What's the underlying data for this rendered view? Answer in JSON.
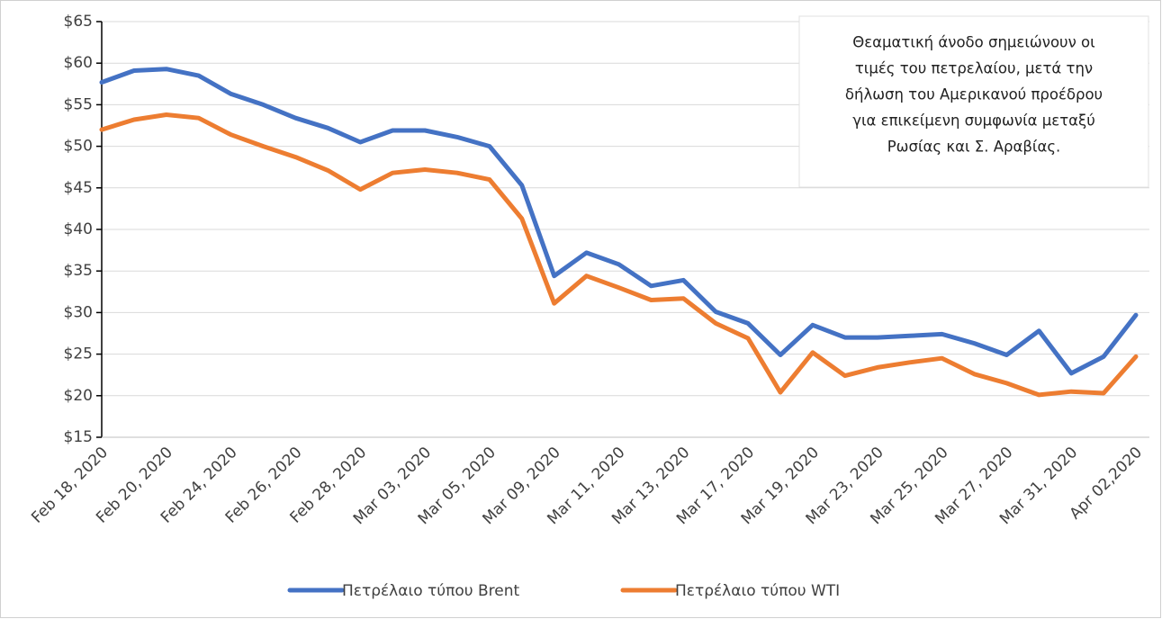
{
  "chart_data": {
    "type": "line",
    "categories": [
      "Feb 18, 2020",
      null,
      "Feb 20, 2020",
      null,
      "Feb 24, 2020",
      null,
      "Feb 26, 2020",
      null,
      "Feb 28, 2020",
      null,
      "Mar 03, 2020",
      null,
      "Mar 05, 2020",
      null,
      "Mar 09, 2020",
      null,
      "Mar 11, 2020",
      null,
      "Mar 13, 2020",
      null,
      "Mar 17, 2020",
      null,
      "Mar 19, 2020",
      null,
      "Mar 23, 2020",
      null,
      "Mar 25, 2020",
      null,
      "Mar 27, 2020",
      null,
      "Mar 31, 2020",
      null,
      "Apr 02,2020"
    ],
    "series": [
      {
        "name": "Πετρέλαιο τύπου Brent",
        "color": "#4472c4",
        "values": [
          57.7,
          59.1,
          59.3,
          58.5,
          56.3,
          55.0,
          53.4,
          52.2,
          50.5,
          51.9,
          51.9,
          51.1,
          50.0,
          45.3,
          34.4,
          37.2,
          35.8,
          33.2,
          33.9,
          30.1,
          28.7,
          24.9,
          28.5,
          27.0,
          27.0,
          27.2,
          27.4,
          26.3,
          24.9,
          27.8,
          22.7,
          24.7,
          29.7
        ]
      },
      {
        "name": "Πετρέλαιο τύπου WTI",
        "color": "#ed7d31",
        "values": [
          52.0,
          53.2,
          53.8,
          53.4,
          51.4,
          50.0,
          48.7,
          47.1,
          44.8,
          46.8,
          47.2,
          46.8,
          46.0,
          41.3,
          31.1,
          34.4,
          33.0,
          31.5,
          31.7,
          28.7,
          26.9,
          20.4,
          25.2,
          22.4,
          23.4,
          24.0,
          24.5,
          22.6,
          21.5,
          20.1,
          20.5,
          20.3,
          24.7
        ]
      }
    ],
    "ylim": [
      15,
      65
    ],
    "yticks": [
      {
        "value": 15,
        "label": "$15"
      },
      {
        "value": 20,
        "label": "$20"
      },
      {
        "value": 25,
        "label": "$25"
      },
      {
        "value": 30,
        "label": "$30"
      },
      {
        "value": 35,
        "label": "$35"
      },
      {
        "value": 40,
        "label": "$40"
      },
      {
        "value": 45,
        "label": "$45"
      },
      {
        "value": 50,
        "label": "$50"
      },
      {
        "value": 55,
        "label": "$55"
      },
      {
        "value": 60,
        "label": "$60"
      },
      {
        "value": 65,
        "label": "$65"
      }
    ],
    "grid": true,
    "legend": "bottom",
    "annotation": [
      "Θεαματική άνοδο σημειώνουν οι",
      "τιμές του πετρελαίου, μετά την",
      "δήλωση του Αμερικανού προέδρου",
      "για επικείμενη συμφωνία μεταξύ",
      "Ρωσίας και Σ. Αραβίας."
    ]
  }
}
